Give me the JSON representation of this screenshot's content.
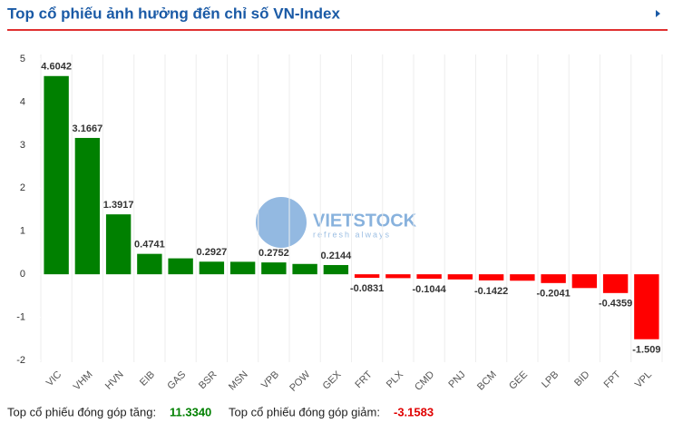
{
  "header": {
    "title": "Top cổ phiếu ảnh hưởng đến chỉ số VN-Index"
  },
  "chart_data": {
    "type": "bar",
    "categories": [
      "VIC",
      "VHM",
      "HVN",
      "EIB",
      "GAS",
      "BSR",
      "MSN",
      "VPB",
      "POW",
      "GEX",
      "FRT",
      "PLX",
      "CMD",
      "PNJ",
      "BCM",
      "GEE",
      "LPB",
      "BID",
      "FPT",
      "VPL"
    ],
    "values": [
      4.6042,
      3.1667,
      1.3917,
      0.4741,
      0.37,
      0.2927,
      0.29,
      0.2752,
      0.24,
      0.2144,
      -0.0831,
      -0.09,
      -0.1044,
      -0.12,
      -0.1422,
      -0.15,
      -0.2041,
      -0.32,
      -0.4359,
      -1.509
    ],
    "value_labels": [
      "4.6042",
      "3.1667",
      "1.3917",
      "0.4741",
      null,
      "0.2927",
      null,
      "0.2752",
      null,
      "0.2144",
      "-0.0831",
      null,
      "-0.1044",
      null,
      "-0.1422",
      null,
      "-0.2041",
      null,
      "-0.4359",
      "-1.509"
    ],
    "positive_color": "#008000",
    "negative_color": "#ff0000",
    "ylim": [
      -2,
      5
    ],
    "yticks": [
      -2,
      -1,
      0,
      1,
      2,
      3,
      4,
      5
    ],
    "watermark": {
      "text": "VIETSTOCK",
      "tagline": "refresh always"
    }
  },
  "footer": {
    "up_label": "Top cổ phiếu đóng góp tăng:",
    "up_value": "11.3340",
    "down_label": "Top cổ phiếu đóng góp giảm:",
    "down_value": "-3.1583"
  }
}
